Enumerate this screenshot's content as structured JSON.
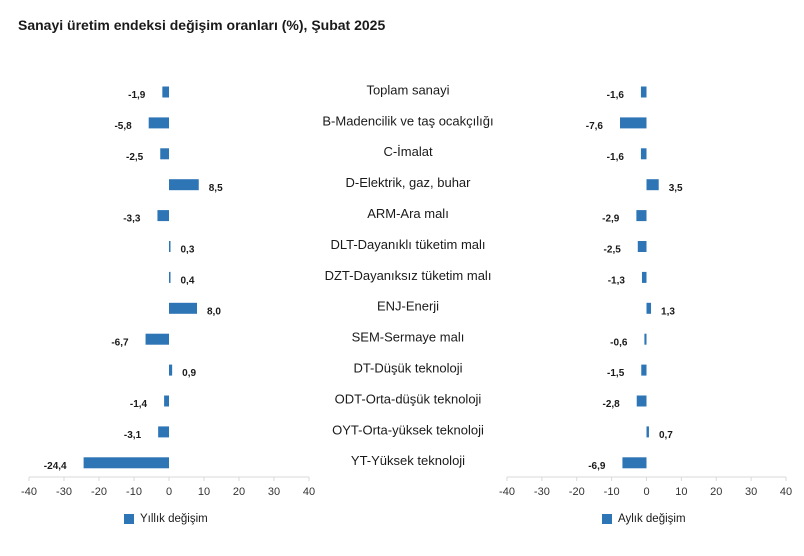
{
  "chart_data": {
    "type": "bar",
    "orientation": "horizontal",
    "title": "Sanayi üretim endeksi değişim oranları (%), Şubat 2025",
    "categories": [
      "Toplam sanayi",
      "B-Madencilik ve taş ocakçılığı",
      "C-İmalat",
      "D-Elektrik, gaz, buhar",
      "ARM-Ara malı",
      "DLT-Dayanıklı tüketim malı",
      "DZT-Dayanıksız tüketim malı",
      "ENJ-Enerji",
      "SEM-Sermaye malı",
      "DT-Düşük teknoloji",
      "ODT-Orta-düşük teknoloji",
      "OYT-Orta-yüksek teknoloji",
      "YT-Yüksek teknoloji"
    ],
    "series": [
      {
        "name": "Yıllık değişim",
        "values": [
          -1.9,
          -5.8,
          -2.5,
          8.5,
          -3.3,
          0.3,
          0.4,
          8.0,
          -6.7,
          0.9,
          -1.4,
          -3.1,
          -24.4
        ],
        "labels": [
          "-1,9",
          "-5,8",
          "-2,5",
          "8,5",
          "-3,3",
          "0,3",
          "0,4",
          "8,0",
          "-6,7",
          "0,9",
          "-1,4",
          "-3,1",
          "-24,4"
        ],
        "color": "#2e75b6"
      },
      {
        "name": "Aylık değişim",
        "values": [
          -1.6,
          -7.6,
          -1.6,
          3.5,
          -2.9,
          -2.5,
          -1.3,
          1.3,
          -0.6,
          -1.5,
          -2.8,
          0.7,
          -6.9
        ],
        "labels": [
          "-1,6",
          "-7,6",
          "-1,6",
          "3,5",
          "-2,9",
          "-2,5",
          "-1,3",
          "1,3",
          "-0,6",
          "-1,5",
          "-2,8",
          "0,7",
          "-6,9"
        ],
        "color": "#2e75b6"
      }
    ],
    "xlim": [
      -40,
      40
    ],
    "xticks": [
      -40,
      -30,
      -20,
      -10,
      0,
      10,
      20,
      30,
      40
    ],
    "xtick_labels": [
      "-40",
      "-30",
      "-20",
      "-10",
      "0",
      "10",
      "20",
      "30",
      "40"
    ],
    "legend_position": "bottom",
    "grid": false
  }
}
